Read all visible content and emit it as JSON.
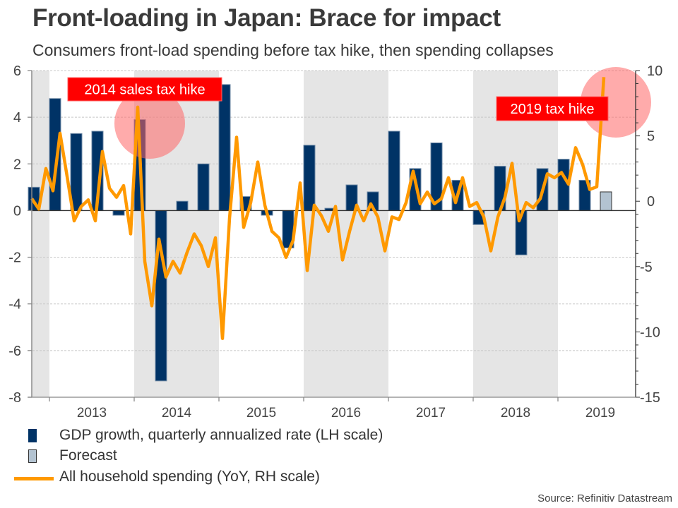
{
  "chart_data": {
    "type": "bar+line",
    "title": "Front-loading in Japan: Brace for impact",
    "subtitle": "Consumers front-load spending before tax hike, then spending collapses",
    "source": "Source: Refinitiv Datastream",
    "x_tick_labels": [
      "2013",
      "2014",
      "2015",
      "2016",
      "2017",
      "2018",
      "2019"
    ],
    "y_left": {
      "ylim": [
        -8,
        6
      ],
      "ticks": [
        "6",
        "4",
        "2",
        "0",
        "-2",
        "-4",
        "-6",
        "-8"
      ],
      "label": "LH scale"
    },
    "y_right": {
      "ylim": [
        -15,
        10
      ],
      "ticks": [
        "10",
        "5",
        "0",
        "-5",
        "-10",
        "-15"
      ],
      "label": "RH scale"
    },
    "grid": "horizontal-dashed",
    "shaded_years": [
      "2012",
      "2014",
      "2016",
      "2018"
    ],
    "bar_series": {
      "name": "GDP growth, quarterly annualized rate (LH scale)",
      "color": "#003366",
      "quarters": [
        "2012Q4",
        "2013Q1",
        "2013Q2",
        "2013Q3",
        "2013Q4",
        "2014Q1",
        "2014Q2",
        "2014Q3",
        "2014Q4",
        "2015Q1",
        "2015Q2",
        "2015Q3",
        "2015Q4",
        "2016Q1",
        "2016Q2",
        "2016Q3",
        "2016Q4",
        "2017Q1",
        "2017Q2",
        "2017Q3",
        "2017Q4",
        "2018Q1",
        "2018Q2",
        "2018Q3",
        "2018Q4",
        "2019Q1",
        "2019Q2"
      ],
      "values": [
        1.0,
        4.8,
        3.3,
        3.4,
        -0.2,
        3.9,
        -7.3,
        0.4,
        2.0,
        5.4,
        0.6,
        -0.2,
        -1.6,
        2.8,
        0.1,
        1.1,
        0.8,
        3.4,
        1.8,
        2.9,
        1.3,
        -0.6,
        1.9,
        -1.9,
        1.8,
        2.2,
        1.3
      ]
    },
    "forecast_series": {
      "name": "Forecast",
      "color": "#b3c3d1",
      "quarters": [
        "2019Q3"
      ],
      "values": [
        0.8
      ]
    },
    "line_series": {
      "name": "All household spending (YoY, RH scale)",
      "color": "#ff9900",
      "start": "2012-11",
      "frequency": "monthly",
      "values": [
        0.2,
        -0.6,
        2.5,
        0.8,
        5.2,
        1.9,
        -1.5,
        -0.4,
        0.1,
        -1.5,
        3.8,
        1.0,
        0.3,
        1.2,
        -2.5,
        7.2,
        -4.6,
        -8.0,
        -2.9,
        -5.8,
        -4.6,
        -5.5,
        -3.9,
        -2.5,
        -3.4,
        -5.0,
        -2.8,
        -10.5,
        -1.3,
        4.9,
        -2.0,
        -0.1,
        3.0,
        -0.3,
        -2.3,
        -2.8,
        -4.3,
        -3.0,
        1.4,
        -5.3,
        -0.3,
        -1.1,
        -2.3,
        -0.4,
        -4.5,
        -2.3,
        -0.3,
        -1.5,
        -0.2,
        -1.2,
        -3.8,
        -1.2,
        -1.4,
        -0.1,
        2.3,
        -0.2,
        0.7,
        -0.2,
        0.2,
        1.8,
        -0.1,
        1.8,
        -0.4,
        -0.1,
        -1.2,
        -3.8,
        -1.2,
        0.3,
        2.9,
        -1.5,
        -0.1,
        -0.5,
        0.2,
        2.1,
        1.8,
        2.2,
        1.3,
        4.1,
        2.8,
        0.9,
        1.1,
        9.5
      ]
    },
    "annotations": [
      {
        "text": "2014 sales tax hike",
        "target": "2014-03",
        "color": "#ff0000"
      },
      {
        "text": "2019 tax hike",
        "target": "2019-09",
        "color": "#ff0000"
      }
    ],
    "legend": [
      {
        "label": "GDP growth, quarterly annualized rate (LH scale)",
        "kind": "bar",
        "color": "#003366"
      },
      {
        "label": "Forecast",
        "kind": "bar",
        "color": "#b3c3d1"
      },
      {
        "label": "All household spending (YoY, RH scale)",
        "kind": "line",
        "color": "#ff9900"
      }
    ],
    "legend_position": "bottom-left"
  }
}
